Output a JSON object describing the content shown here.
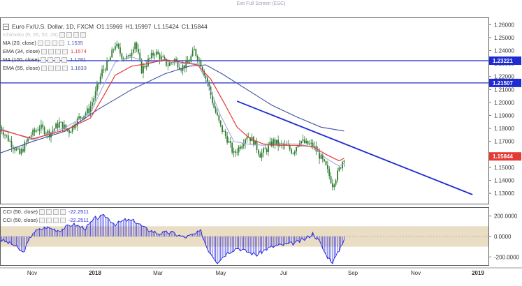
{
  "header": {
    "exit_label": "Exit Full Screen (ESC)"
  },
  "legend": {
    "symbol": "Euro Fx/U.S. Dollar, 1D, FXCM",
    "open": "O1.15969",
    "high": "H1.15997",
    "low": "L1.15424",
    "close": "C1.15844",
    "ichimoku": "Ichimoku (9, 26, 52, 26)",
    "ma20": {
      "label": "MA (20, close)",
      "value": "1.1535"
    },
    "ema34": {
      "label": "EMA (34, close)",
      "value": "1.1574"
    },
    "ma100": {
      "label": "MA (100, close)",
      "value": "1.1781"
    },
    "ema55": {
      "label": "EMA (55, close)",
      "value": "1.1633"
    }
  },
  "cci_legend": {
    "row1": {
      "label": "CCI (50, close)",
      "value": "-22.2511"
    },
    "row2": {
      "label": "CCI (50, close)",
      "value": "-22.2511"
    }
  },
  "colors": {
    "up": "#26a69a",
    "down": "#111111",
    "candle": "#2e7d32",
    "ema34": "#e53935",
    "ma20": "#9aa0d6",
    "ma100": "#3f4fa3",
    "hline": "#1f2bd1",
    "trend": "#1f2bd1",
    "cci": "#2a2ae0",
    "cci_band": "#e9ddc4",
    "price_label_bg": "#1f2bd1",
    "last_price_bg": "#e53935"
  },
  "chart_data": {
    "type": "candlestick",
    "instrument": "Euro Fx/U.S. Dollar, 1D, FXCM",
    "x_ticks": [
      "Nov",
      "2018",
      "Mar",
      "May",
      "Jul",
      "Sep",
      "Nov",
      "2019"
    ],
    "y_ticks": [
      "1.26000",
      "1.25000",
      "1.24000",
      "1.23000",
      "1.22000",
      "1.21000",
      "1.20000",
      "1.19000",
      "1.18000",
      "1.17000",
      "1.16000",
      "1.15000",
      "1.14000",
      "1.13000"
    ],
    "ylim": [
      1.122,
      1.265
    ],
    "price_path": [
      [
        0,
        1.181
      ],
      [
        6,
        1.17
      ],
      [
        12,
        1.16
      ],
      [
        18,
        1.174
      ],
      [
        24,
        1.181
      ],
      [
        30,
        1.176
      ],
      [
        36,
        1.184
      ],
      [
        42,
        1.178
      ],
      [
        48,
        1.188
      ],
      [
        54,
        1.194
      ],
      [
        58,
        1.207
      ],
      [
        62,
        1.224
      ],
      [
        66,
        1.231
      ],
      [
        70,
        1.245
      ],
      [
        74,
        1.236
      ],
      [
        78,
        1.234
      ],
      [
        82,
        1.247
      ],
      [
        86,
        1.225
      ],
      [
        90,
        1.232
      ],
      [
        94,
        1.239
      ],
      [
        98,
        1.234
      ],
      [
        102,
        1.229
      ],
      [
        106,
        1.233
      ],
      [
        110,
        1.227
      ],
      [
        114,
        1.23
      ],
      [
        118,
        1.24
      ],
      [
        122,
        1.23
      ],
      [
        126,
        1.216
      ],
      [
        130,
        1.196
      ],
      [
        134,
        1.181
      ],
      [
        138,
        1.172
      ],
      [
        142,
        1.16
      ],
      [
        146,
        1.167
      ],
      [
        150,
        1.175
      ],
      [
        154,
        1.17
      ],
      [
        158,
        1.16
      ],
      [
        162,
        1.164
      ],
      [
        166,
        1.17
      ],
      [
        170,
        1.167
      ],
      [
        174,
        1.166
      ],
      [
        178,
        1.162
      ],
      [
        182,
        1.171
      ],
      [
        186,
        1.168
      ],
      [
        190,
        1.167
      ],
      [
        194,
        1.159
      ],
      [
        198,
        1.15
      ],
      [
        202,
        1.137
      ],
      [
        205,
        1.145
      ],
      [
        209,
        1.158
      ]
    ],
    "ema34": [
      [
        0,
        1.179
      ],
      [
        20,
        1.172
      ],
      [
        40,
        1.179
      ],
      [
        55,
        1.188
      ],
      [
        62,
        1.203
      ],
      [
        70,
        1.221
      ],
      [
        80,
        1.228
      ],
      [
        90,
        1.23
      ],
      [
        100,
        1.233
      ],
      [
        110,
        1.231
      ],
      [
        120,
        1.229
      ],
      [
        128,
        1.218
      ],
      [
        136,
        1.2
      ],
      [
        144,
        1.181
      ],
      [
        152,
        1.172
      ],
      [
        160,
        1.168
      ],
      [
        170,
        1.167
      ],
      [
        180,
        1.167
      ],
      [
        190,
        1.166
      ],
      [
        198,
        1.16
      ],
      [
        206,
        1.155
      ],
      [
        209,
        1.157
      ]
    ],
    "ma20": [
      [
        0,
        1.18
      ],
      [
        20,
        1.171
      ],
      [
        40,
        1.181
      ],
      [
        55,
        1.192
      ],
      [
        62,
        1.211
      ],
      [
        70,
        1.231
      ],
      [
        80,
        1.235
      ],
      [
        90,
        1.231
      ],
      [
        100,
        1.232
      ],
      [
        110,
        1.23
      ],
      [
        120,
        1.23
      ],
      [
        126,
        1.215
      ],
      [
        134,
        1.19
      ],
      [
        142,
        1.17
      ],
      [
        150,
        1.168
      ],
      [
        160,
        1.167
      ],
      [
        170,
        1.168
      ],
      [
        180,
        1.168
      ],
      [
        190,
        1.166
      ],
      [
        198,
        1.157
      ],
      [
        206,
        1.151
      ],
      [
        209,
        1.153
      ]
    ],
    "ma100": [
      [
        0,
        1.161
      ],
      [
        20,
        1.17
      ],
      [
        40,
        1.178
      ],
      [
        60,
        1.195
      ],
      [
        80,
        1.21
      ],
      [
        100,
        1.222
      ],
      [
        115,
        1.228
      ],
      [
        125,
        1.229
      ],
      [
        135,
        1.222
      ],
      [
        150,
        1.21
      ],
      [
        165,
        1.198
      ],
      [
        180,
        1.189
      ],
      [
        195,
        1.181
      ],
      [
        209,
        1.178
      ]
    ],
    "h_lines": [
      {
        "value": 1.23221,
        "label": "1.23221"
      },
      {
        "value": 1.21507,
        "label": "1.21507"
      }
    ],
    "last_price": {
      "value": 1.15844,
      "label": "1.15844"
    },
    "trendline": {
      "from": [
        144,
        1.201
      ],
      "to": [
        287,
        1.129
      ]
    },
    "cci": {
      "ticks": [
        "200.0000",
        "0.0000",
        "-200.0000"
      ],
      "ylim": [
        -280,
        280
      ],
      "band": [
        -100,
        100
      ],
      "series": [
        [
          0,
          -30
        ],
        [
          8,
          -80
        ],
        [
          14,
          -160
        ],
        [
          20,
          40
        ],
        [
          28,
          90
        ],
        [
          36,
          60
        ],
        [
          44,
          120
        ],
        [
          52,
          80
        ],
        [
          58,
          180
        ],
        [
          64,
          200
        ],
        [
          70,
          120
        ],
        [
          76,
          160
        ],
        [
          82,
          150
        ],
        [
          88,
          80
        ],
        [
          96,
          30
        ],
        [
          104,
          40
        ],
        [
          112,
          -10
        ],
        [
          118,
          20
        ],
        [
          122,
          50
        ],
        [
          126,
          -120
        ],
        [
          132,
          -250
        ],
        [
          138,
          -160
        ],
        [
          144,
          -110
        ],
        [
          150,
          -150
        ],
        [
          156,
          -180
        ],
        [
          162,
          -120
        ],
        [
          168,
          -90
        ],
        [
          174,
          -80
        ],
        [
          180,
          -60
        ],
        [
          186,
          -20
        ],
        [
          190,
          30
        ],
        [
          194,
          -50
        ],
        [
          198,
          -180
        ],
        [
          202,
          -250
        ],
        [
          205,
          -170
        ],
        [
          209,
          -22
        ]
      ]
    }
  }
}
